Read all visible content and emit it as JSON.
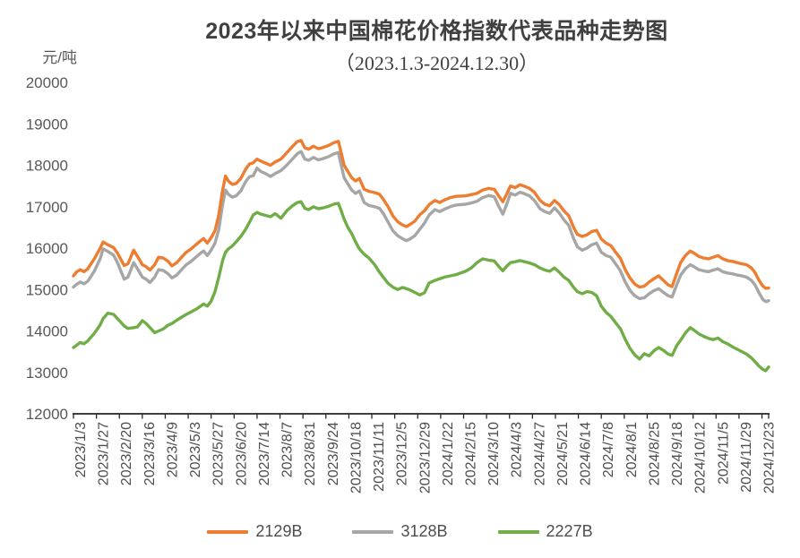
{
  "chart_data": {
    "type": "line",
    "title": "2023年以来中国棉花价格指数代表品种走势图",
    "subtitle": "（2023.1.3-2024.12.30）",
    "ylabel": "元/吨",
    "ylim": [
      12000,
      20000
    ],
    "y_ticks": [
      20000,
      19000,
      18000,
      17000,
      16000,
      15000,
      14000,
      13000,
      12000
    ],
    "x_tick_labels": [
      "2023/1/3",
      "2023/1/27",
      "2023/2/20",
      "2023/3/16",
      "2023/4/9",
      "2023/5/3",
      "2023/5/27",
      "2023/6/20",
      "2023/7/14",
      "2023/8/7",
      "2023/8/31",
      "2023/9/24",
      "2023/10/18",
      "2023/11/11",
      "2023/12/5",
      "2023/12/29",
      "2024/1/22",
      "2024/2/15",
      "2024/3/10",
      "2024/4/3",
      "2024/4/27",
      "2024/5/21",
      "2024/6/14",
      "2024/7/8",
      "2024/8/1",
      "2024/8/25",
      "2024/9/18",
      "2024/10/12",
      "2024/11/5",
      "2024/11/29",
      "2024/12/23"
    ],
    "legend_position": "bottom",
    "grid": false,
    "dates": [
      "2023/1/3",
      "2023/1/6",
      "2023/1/10",
      "2023/1/14",
      "2023/1/18",
      "2023/1/25",
      "2023/1/31",
      "2023/2/3",
      "2023/2/8",
      "2023/2/14",
      "2023/2/18",
      "2023/2/25",
      "2023/3/1",
      "2023/3/7",
      "2023/3/11",
      "2023/3/16",
      "2023/3/20",
      "2023/3/24",
      "2023/3/29",
      "2023/4/2",
      "2023/4/7",
      "2023/4/12",
      "2023/4/16",
      "2023/4/21",
      "2023/4/26",
      "2023/5/1",
      "2023/5/6",
      "2023/5/11",
      "2023/5/16",
      "2023/5/19",
      "2023/5/23",
      "2023/5/27",
      "2023/5/31",
      "2023/6/4",
      "2023/6/8",
      "2023/6/11",
      "2023/6/14",
      "2023/6/18",
      "2023/6/22",
      "2023/6/27",
      "2023/7/2",
      "2023/7/6",
      "2023/7/10",
      "2023/7/14",
      "2023/7/18",
      "2023/7/23",
      "2023/7/28",
      "2023/8/2",
      "2023/8/8",
      "2023/8/14",
      "2023/8/20",
      "2023/8/25",
      "2023/8/29",
      "2023/9/2",
      "2023/9/6",
      "2023/9/11",
      "2023/9/16",
      "2023/9/21",
      "2023/9/27",
      "2023/10/2",
      "2023/10/7",
      "2023/10/10",
      "2023/10/13",
      "2023/10/17",
      "2023/10/21",
      "2023/10/25",
      "2023/10/29",
      "2023/11/3",
      "2023/11/8",
      "2023/11/14",
      "2023/11/19",
      "2023/11/23",
      "2023/11/28",
      "2023/12/3",
      "2023/12/8",
      "2023/12/13",
      "2023/12/17",
      "2023/12/21",
      "2023/12/26",
      "2023/12/31",
      "2024/1/5",
      "2024/1/10",
      "2024/1/16",
      "2024/1/21",
      "2024/1/26",
      "2024/2/1",
      "2024/2/7",
      "2024/2/17",
      "2024/2/23",
      "2024/2/29",
      "2024/3/6",
      "2024/3/12",
      "2024/3/18",
      "2024/3/23",
      "2024/3/27",
      "2024/3/31",
      "2024/4/4",
      "2024/4/9",
      "2024/4/14",
      "2024/4/19",
      "2024/4/24",
      "2024/4/29",
      "2024/5/5",
      "2024/5/10",
      "2024/5/15",
      "2024/5/20",
      "2024/5/25",
      "2024/5/30",
      "2024/6/4",
      "2024/6/9",
      "2024/6/13",
      "2024/6/18",
      "2024/6/23",
      "2024/6/28",
      "2024/7/3",
      "2024/7/8",
      "2024/7/13",
      "2024/7/18",
      "2024/7/23",
      "2024/7/28",
      "2024/8/2",
      "2024/8/7",
      "2024/8/12",
      "2024/8/17",
      "2024/8/22",
      "2024/8/27",
      "2024/9/1",
      "2024/9/6",
      "2024/9/11",
      "2024/9/16",
      "2024/9/20",
      "2024/9/25",
      "2024/9/29",
      "2024/10/4",
      "2024/10/9",
      "2024/10/13",
      "2024/10/18",
      "2024/10/23",
      "2024/10/28",
      "2024/11/2",
      "2024/11/7",
      "2024/11/12",
      "2024/11/17",
      "2024/11/22",
      "2024/11/27",
      "2024/12/2",
      "2024/12/7",
      "2024/12/12",
      "2024/12/16",
      "2024/12/20",
      "2024/12/24",
      "2024/12/27",
      "2024/12/30"
    ],
    "series": [
      {
        "name": "2129B",
        "color": "#ED7D31",
        "values": [
          15330,
          15420,
          15480,
          15430,
          15500,
          15750,
          16000,
          16150,
          16080,
          16010,
          15880,
          15580,
          15620,
          15950,
          15800,
          15600,
          15550,
          15470,
          15600,
          15780,
          15760,
          15680,
          15570,
          15650,
          15780,
          15900,
          15980,
          16080,
          16180,
          16230,
          16120,
          16250,
          16420,
          16800,
          17400,
          17740,
          17620,
          17540,
          17560,
          17680,
          17900,
          18030,
          18060,
          18150,
          18100,
          18050,
          18000,
          18080,
          18150,
          18300,
          18450,
          18570,
          18600,
          18420,
          18390,
          18460,
          18400,
          18430,
          18480,
          18540,
          18580,
          18300,
          18000,
          17850,
          17700,
          17620,
          17680,
          17420,
          17370,
          17340,
          17300,
          17180,
          17000,
          16780,
          16640,
          16560,
          16520,
          16570,
          16650,
          16800,
          16900,
          17050,
          17150,
          17100,
          17160,
          17220,
          17250,
          17260,
          17290,
          17320,
          17400,
          17440,
          17420,
          17250,
          17120,
          17300,
          17500,
          17460,
          17530,
          17490,
          17440,
          17350,
          17150,
          17060,
          17020,
          17150,
          17050,
          16900,
          16780,
          16500,
          16330,
          16280,
          16320,
          16400,
          16430,
          16220,
          16120,
          16060,
          15900,
          15750,
          15480,
          15280,
          15130,
          15060,
          15080,
          15180,
          15260,
          15330,
          15220,
          15110,
          15070,
          15400,
          15650,
          15820,
          15930,
          15880,
          15800,
          15760,
          15740,
          15780,
          15820,
          15740,
          15700,
          15680,
          15650,
          15620,
          15600,
          15520,
          15400,
          15220,
          15080,
          15030,
          15040
        ]
      },
      {
        "name": "3128B",
        "color": "#A6A6A6",
        "values": [
          15060,
          15120,
          15180,
          15140,
          15200,
          15450,
          15750,
          15980,
          15920,
          15830,
          15650,
          15250,
          15300,
          15650,
          15500,
          15300,
          15250,
          15170,
          15300,
          15480,
          15460,
          15380,
          15280,
          15350,
          15480,
          15600,
          15680,
          15780,
          15880,
          15930,
          15820,
          15950,
          16120,
          16450,
          17050,
          17400,
          17300,
          17230,
          17260,
          17380,
          17600,
          17720,
          17750,
          17930,
          17850,
          17800,
          17730,
          17800,
          17870,
          18000,
          18150,
          18280,
          18330,
          18150,
          18120,
          18190,
          18130,
          18160,
          18210,
          18270,
          18310,
          18000,
          17700,
          17550,
          17400,
          17320,
          17380,
          17100,
          17030,
          17000,
          16960,
          16840,
          16630,
          16420,
          16300,
          16230,
          16180,
          16220,
          16300,
          16450,
          16600,
          16800,
          16930,
          16880,
          16940,
          17000,
          17040,
          17060,
          17090,
          17130,
          17220,
          17270,
          17240,
          17000,
          16820,
          17050,
          17320,
          17280,
          17350,
          17310,
          17260,
          17150,
          16950,
          16880,
          16840,
          16970,
          16850,
          16680,
          16550,
          16230,
          16030,
          15950,
          16000,
          16080,
          16120,
          15900,
          15820,
          15780,
          15620,
          15450,
          15180,
          14980,
          14850,
          14780,
          14800,
          14900,
          14970,
          15020,
          14930,
          14850,
          14820,
          15120,
          15350,
          15500,
          15600,
          15550,
          15480,
          15450,
          15430,
          15470,
          15500,
          15430,
          15400,
          15380,
          15350,
          15330,
          15300,
          15220,
          15100,
          14920,
          14760,
          14710,
          14730
        ]
      },
      {
        "name": "2227B",
        "color": "#70AD47",
        "values": [
          13600,
          13650,
          13720,
          13690,
          13760,
          13950,
          14150,
          14300,
          14430,
          14400,
          14300,
          14120,
          14060,
          14080,
          14100,
          14250,
          14180,
          14080,
          13960,
          14000,
          14050,
          14140,
          14180,
          14260,
          14330,
          14400,
          14460,
          14520,
          14600,
          14650,
          14600,
          14720,
          14950,
          15300,
          15700,
          15900,
          15980,
          16050,
          16150,
          16280,
          16450,
          16620,
          16800,
          16860,
          16820,
          16790,
          16760,
          16830,
          16720,
          16900,
          17020,
          17100,
          17120,
          16960,
          16930,
          17000,
          16950,
          16970,
          17010,
          17060,
          17080,
          16900,
          16700,
          16500,
          16350,
          16150,
          15980,
          15850,
          15760,
          15600,
          15420,
          15300,
          15150,
          15060,
          15000,
          15050,
          15020,
          14990,
          14930,
          14870,
          14920,
          15160,
          15220,
          15260,
          15300,
          15330,
          15360,
          15440,
          15520,
          15650,
          15740,
          15710,
          15690,
          15550,
          15450,
          15560,
          15650,
          15670,
          15700,
          15670,
          15640,
          15600,
          15520,
          15470,
          15440,
          15520,
          15420,
          15300,
          15220,
          15050,
          14950,
          14900,
          14950,
          14930,
          14850,
          14600,
          14450,
          14350,
          14200,
          14050,
          13800,
          13580,
          13420,
          13320,
          13450,
          13400,
          13520,
          13600,
          13530,
          13440,
          13410,
          13650,
          13780,
          13950,
          14080,
          14020,
          13930,
          13870,
          13820,
          13790,
          13830,
          13740,
          13690,
          13620,
          13560,
          13500,
          13440,
          13350,
          13250,
          13150,
          13070,
          13040,
          13130
        ]
      }
    ]
  }
}
